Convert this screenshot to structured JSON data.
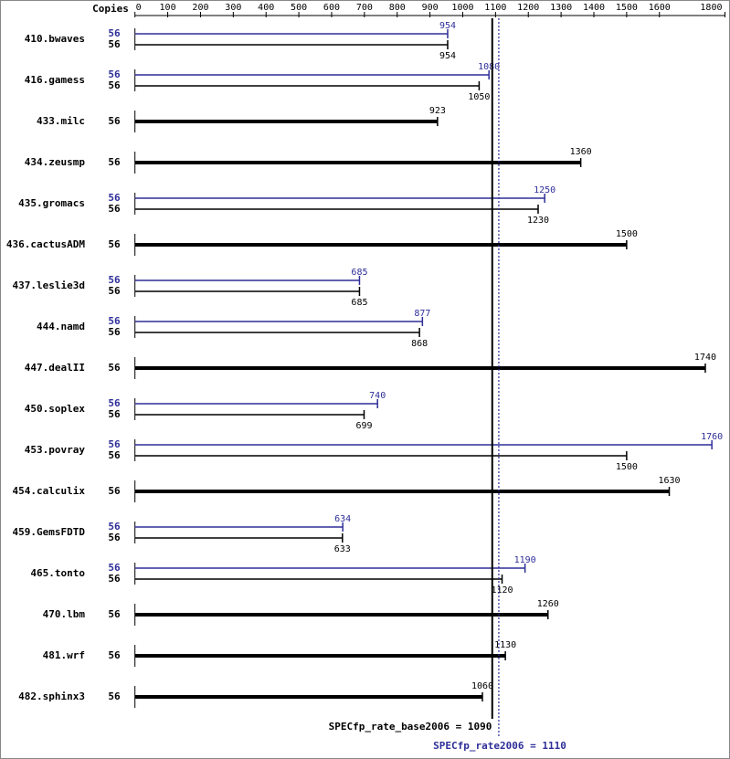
{
  "chart_data": {
    "type": "bar",
    "orientation": "horizontal",
    "copies_label": "Copies",
    "categories": [
      "410.bwaves",
      "416.gamess",
      "433.milc",
      "434.zeusmp",
      "435.gromacs",
      "436.cactusADM",
      "437.leslie3d",
      "444.namd",
      "447.dealII",
      "450.soplex",
      "453.povray",
      "454.calculix",
      "459.GemsFDTD",
      "465.tonto",
      "470.lbm",
      "481.wrf",
      "482.sphinx3"
    ],
    "series": [
      {
        "color": "#2e2e99",
        "copies": [
          56,
          56,
          null,
          null,
          56,
          null,
          56,
          56,
          null,
          56,
          56,
          null,
          56,
          56,
          null,
          null,
          null
        ],
        "values": [
          954,
          1080,
          null,
          null,
          1250,
          null,
          685,
          877,
          null,
          740,
          1760,
          null,
          634,
          1190,
          null,
          null,
          null
        ]
      },
      {
        "color": "#000000",
        "copies": [
          56,
          56,
          56,
          56,
          56,
          56,
          56,
          56,
          56,
          56,
          56,
          56,
          56,
          56,
          56,
          56,
          56
        ],
        "values": [
          954,
          1050,
          923,
          1360,
          1230,
          1500,
          685,
          868,
          1740,
          699,
          1500,
          1630,
          633,
          1120,
          1260,
          1130,
          1060
        ]
      }
    ],
    "xlim": [
      0,
      1800
    ],
    "xticks": [
      0,
      100,
      200,
      300,
      400,
      500,
      600,
      700,
      800,
      900,
      1000,
      1100,
      1200,
      1300,
      1400,
      1500,
      1600,
      1800
    ],
    "summary": [
      {
        "label": "SPECfp_rate_base2006 = 1090",
        "value": 1090,
        "color": "#000000",
        "style": "solid"
      },
      {
        "label": "SPECfp_rate2006 = 1110",
        "value": 1110,
        "color": "#2e2e99",
        "style": "dotted"
      }
    ]
  }
}
